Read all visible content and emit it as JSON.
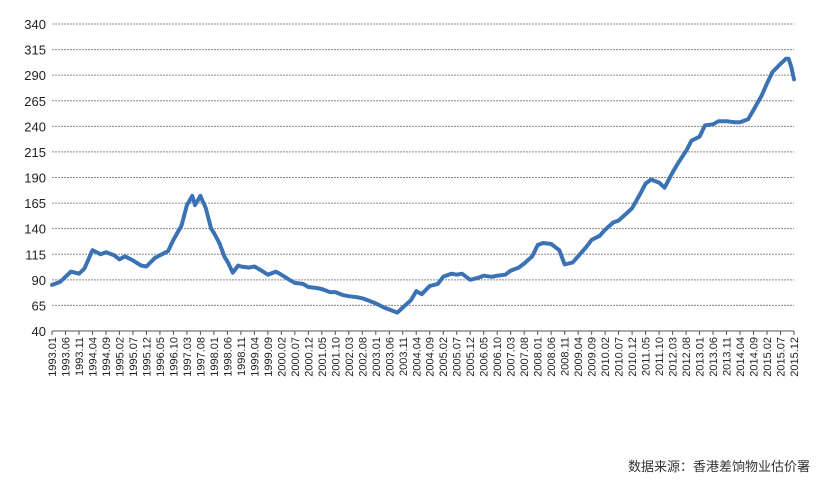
{
  "source_note": "数据来源：香港差饷物业估价署",
  "chart_data": {
    "type": "line",
    "title": "",
    "xlabel": "",
    "ylabel": "",
    "ylim": [
      40,
      340
    ],
    "yticks": [
      40,
      65,
      90,
      115,
      140,
      165,
      190,
      215,
      240,
      265,
      290,
      315,
      340
    ],
    "grid": true,
    "legend": "none",
    "line_color": "#3b72b3",
    "x_tick_labels": [
      "1993.01",
      "1993.06",
      "1993.11",
      "1994.04",
      "1994.09",
      "1995.02",
      "1995.07",
      "1995.12",
      "1996.05",
      "1996.10",
      "1997.03",
      "1997.08",
      "1998.01",
      "1998.06",
      "1998.11",
      "1999.04",
      "1999.09",
      "2000.02",
      "2000.07",
      "2000.12",
      "2001.05",
      "2001.10",
      "2002.03",
      "2002.08",
      "2003.01",
      "2003.06",
      "2003.11",
      "2004.04",
      "2004.09",
      "2005.02",
      "2005.07",
      "2005.12",
      "2006.05",
      "2006.10",
      "2007.03",
      "2007.08",
      "2008.01",
      "2008.06",
      "2008.11",
      "2009.04",
      "2009.09",
      "2010.02",
      "2010.07",
      "2010.12",
      "2011.05",
      "2011.10",
      "2012.03",
      "2012.08",
      "2013.01",
      "2013.06",
      "2013.11",
      "2014.04",
      "2014.09",
      "2015.02",
      "2015.07",
      "2015.12"
    ],
    "series": [
      {
        "points": [
          [
            "1993.01",
            85
          ],
          [
            "1993.04",
            88
          ],
          [
            "1993.06",
            93
          ],
          [
            "1993.08",
            98
          ],
          [
            "1993.11",
            96
          ],
          [
            "1994.01",
            101
          ],
          [
            "1994.04",
            119
          ],
          [
            "1994.07",
            115
          ],
          [
            "1994.09",
            117
          ],
          [
            "1994.12",
            114
          ],
          [
            "1995.02",
            110
          ],
          [
            "1995.04",
            113
          ],
          [
            "1995.07",
            109
          ],
          [
            "1995.10",
            104
          ],
          [
            "1995.12",
            103
          ],
          [
            "1996.03",
            111
          ],
          [
            "1996.05",
            114
          ],
          [
            "1996.08",
            118
          ],
          [
            "1996.10",
            129
          ],
          [
            "1997.01",
            143
          ],
          [
            "1997.03",
            163
          ],
          [
            "1997.05",
            172
          ],
          [
            "1997.06",
            163
          ],
          [
            "1997.08",
            172
          ],
          [
            "1997.10",
            160
          ],
          [
            "1997.12",
            140
          ],
          [
            "1998.01",
            136
          ],
          [
            "1998.03",
            126
          ],
          [
            "1998.05",
            112
          ],
          [
            "1998.06",
            108
          ],
          [
            "1998.08",
            97
          ],
          [
            "1998.10",
            104
          ],
          [
            "1998.11",
            103
          ],
          [
            "1999.02",
            102
          ],
          [
            "1999.04",
            103
          ],
          [
            "1999.06",
            100
          ],
          [
            "1999.09",
            95
          ],
          [
            "1999.12",
            98
          ],
          [
            "2000.02",
            95
          ],
          [
            "2000.05",
            90
          ],
          [
            "2000.07",
            87
          ],
          [
            "2000.10",
            86
          ],
          [
            "2000.12",
            83
          ],
          [
            "2001.03",
            82
          ],
          [
            "2001.05",
            81
          ],
          [
            "2001.08",
            78
          ],
          [
            "2001.10",
            78
          ],
          [
            "2002.01",
            75
          ],
          [
            "2002.03",
            74
          ],
          [
            "2002.06",
            73
          ],
          [
            "2002.08",
            72
          ],
          [
            "2002.11",
            69
          ],
          [
            "2003.01",
            67
          ],
          [
            "2003.04",
            63
          ],
          [
            "2003.06",
            61
          ],
          [
            "2003.08",
            59
          ],
          [
            "2003.09",
            58
          ],
          [
            "2003.11",
            63
          ],
          [
            "2004.02",
            70
          ],
          [
            "2004.04",
            79
          ],
          [
            "2004.06",
            76
          ],
          [
            "2004.09",
            84
          ],
          [
            "2004.12",
            86
          ],
          [
            "2005.02",
            93
          ],
          [
            "2005.05",
            96
          ],
          [
            "2005.07",
            95
          ],
          [
            "2005.09",
            96
          ],
          [
            "2005.12",
            90
          ],
          [
            "2006.03",
            92
          ],
          [
            "2006.05",
            94
          ],
          [
            "2006.08",
            93
          ],
          [
            "2006.10",
            94
          ],
          [
            "2007.01",
            95
          ],
          [
            "2007.03",
            99
          ],
          [
            "2007.06",
            102
          ],
          [
            "2007.08",
            106
          ],
          [
            "2007.11",
            113
          ],
          [
            "2008.01",
            124
          ],
          [
            "2008.03",
            126
          ],
          [
            "2008.06",
            125
          ],
          [
            "2008.09",
            119
          ],
          [
            "2008.11",
            105
          ],
          [
            "2009.02",
            107
          ],
          [
            "2009.04",
            113
          ],
          [
            "2009.07",
            122
          ],
          [
            "2009.09",
            129
          ],
          [
            "2009.12",
            133
          ],
          [
            "2010.02",
            139
          ],
          [
            "2010.05",
            146
          ],
          [
            "2010.07",
            148
          ],
          [
            "2010.10",
            155
          ],
          [
            "2010.12",
            160
          ],
          [
            "2011.03",
            174
          ],
          [
            "2011.05",
            184
          ],
          [
            "2011.07",
            188
          ],
          [
            "2011.10",
            185
          ],
          [
            "2011.12",
            180
          ],
          [
            "2012.03",
            195
          ],
          [
            "2012.05",
            204
          ],
          [
            "2012.08",
            216
          ],
          [
            "2012.10",
            226
          ],
          [
            "2013.01",
            230
          ],
          [
            "2013.03",
            241
          ],
          [
            "2013.06",
            242
          ],
          [
            "2013.08",
            245
          ],
          [
            "2013.11",
            245
          ],
          [
            "2014.02",
            244
          ],
          [
            "2014.04",
            244
          ],
          [
            "2014.07",
            247
          ],
          [
            "2014.09",
            256
          ],
          [
            "2014.12",
            270
          ],
          [
            "2015.02",
            282
          ],
          [
            "2015.04",
            293
          ],
          [
            "2015.07",
            301
          ],
          [
            "2015.09",
            306
          ],
          [
            "2015.10",
            306
          ],
          [
            "2015.11",
            298
          ],
          [
            "2015.12",
            286
          ]
        ]
      }
    ]
  }
}
